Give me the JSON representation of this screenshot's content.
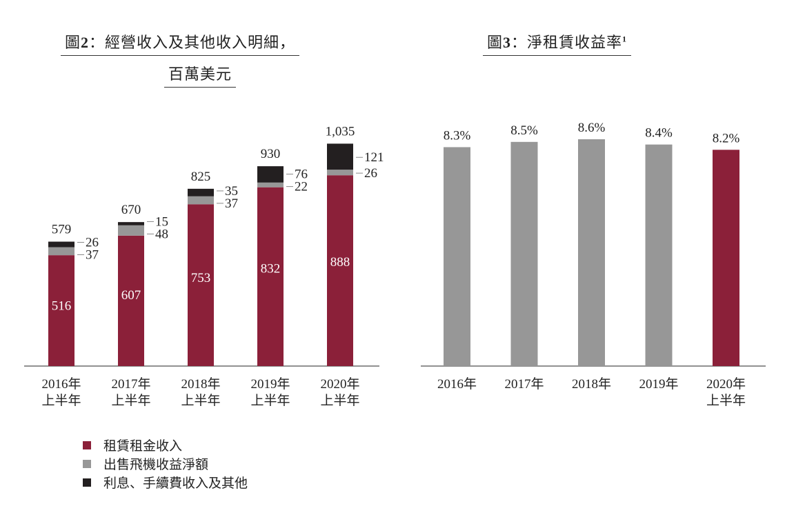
{
  "chart_data": [
    {
      "type": "bar",
      "stacked": true,
      "title_prefix": "圖",
      "title_number": "2",
      "title_text": "：經營收入及其他收入明細，",
      "title_line2": "百萬美元",
      "categories": [
        [
          "2016年",
          "上半年"
        ],
        [
          "2017年",
          "上半年"
        ],
        [
          "2018年",
          "上半年"
        ],
        [
          "2019年",
          "上半年"
        ],
        [
          "2020年",
          "上半年"
        ]
      ],
      "series": [
        {
          "name": "租賃租金收入",
          "color": "#8b2039",
          "values": [
            516,
            607,
            753,
            832,
            888
          ],
          "labels": [
            "516",
            "607",
            "753",
            "832",
            "888"
          ]
        },
        {
          "name": "出售飛機收益淨額",
          "color": "#979797",
          "values": [
            37,
            48,
            37,
            22,
            26
          ],
          "labels": [
            "37",
            "48",
            "37",
            "22",
            "26"
          ]
        },
        {
          "name": "利息、手續費收入及其他",
          "color": "#231f20",
          "values": [
            26,
            15,
            35,
            76,
            121
          ],
          "labels": [
            "26",
            "15",
            "35",
            "76",
            "121"
          ]
        }
      ],
      "totals": [
        "579",
        "670",
        "825",
        "930",
        "1,035"
      ],
      "ylim": [
        0,
        1100
      ]
    },
    {
      "type": "bar",
      "title_prefix": "圖",
      "title_number": "3",
      "title_text": "：淨租賃收益率",
      "title_superscript": "1",
      "categories": [
        [
          "2016年"
        ],
        [
          "2017年"
        ],
        [
          "2018年"
        ],
        [
          "2019年"
        ],
        [
          "2020年",
          "上半年"
        ]
      ],
      "values": [
        8.3,
        8.5,
        8.6,
        8.4,
        8.2
      ],
      "value_labels": [
        "8.3%",
        "8.5%",
        "8.6%",
        "8.4%",
        "8.2%"
      ],
      "colors": [
        "#979797",
        "#979797",
        "#979797",
        "#979797",
        "#8b2039"
      ],
      "ylim": [
        0,
        8.6
      ]
    }
  ]
}
